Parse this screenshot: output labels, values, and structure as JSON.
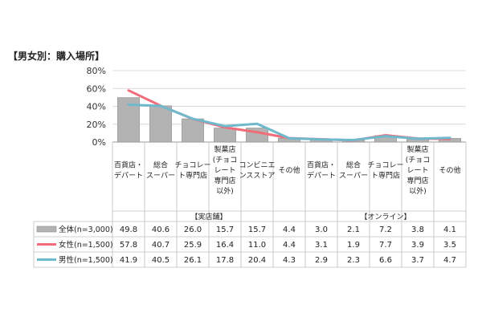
{
  "chart_data": {
    "type": "bar",
    "title": "【男女別：購入場所】",
    "ylim": [
      0,
      80
    ],
    "y_ticks": [
      "0%",
      "20%",
      "40%",
      "60%",
      "80%"
    ],
    "y_tick_values": [
      0,
      20,
      40,
      60,
      80
    ],
    "grid": true,
    "categories": [
      [
        "百貨店・",
        "デパート"
      ],
      [
        "総合",
        "スーパー"
      ],
      [
        "チョコレー",
        "ト専門店"
      ],
      [
        "製菓店",
        "(チョコ",
        "レート",
        "専門店",
        "以外)"
      ],
      [
        "コンビニエ",
        "ンスストア"
      ],
      [
        "その他"
      ],
      [
        "百貨店・",
        "デパート"
      ],
      [
        "総合",
        "スーパー"
      ],
      [
        "チョコレー",
        "ト専門店"
      ],
      [
        "製菓店",
        "(チョコ",
        "レート",
        "専門店",
        "以外)"
      ],
      [
        "その他"
      ]
    ],
    "groups": [
      {
        "label": "【実店舗】",
        "start": 0,
        "end": 5
      },
      {
        "label": "【オンライン】",
        "start": 6,
        "end": 10
      }
    ],
    "series": [
      {
        "name": "全体(n=3,000)",
        "kind": "bar",
        "color": "#b3b3b3",
        "values": [
          49.8,
          40.6,
          26.0,
          15.7,
          15.7,
          4.4,
          3.0,
          2.1,
          7.2,
          3.8,
          4.1
        ],
        "labels": [
          "49.8",
          "40.6",
          "26.0",
          "15.7",
          "15.7",
          "4.4",
          "3.0",
          "2.1",
          "7.2",
          "3.8",
          "4.1"
        ]
      },
      {
        "name": "女性(n=1,500)",
        "kind": "line",
        "color": "#f06c7a",
        "values": [
          57.8,
          40.7,
          25.9,
          16.4,
          11.0,
          4.4,
          3.1,
          1.9,
          7.7,
          3.9,
          3.5
        ],
        "labels": [
          "57.8",
          "40.7",
          "25.9",
          "16.4",
          "11.0",
          "4.4",
          "3.1",
          "1.9",
          "7.7",
          "3.9",
          "3.5"
        ]
      },
      {
        "name": "男性(n=1,500)",
        "kind": "line",
        "color": "#6fb9cc",
        "values": [
          41.9,
          40.5,
          26.1,
          17.8,
          20.4,
          4.3,
          2.9,
          2.3,
          6.6,
          3.7,
          4.7
        ],
        "labels": [
          "41.9",
          "40.5",
          "26.1",
          "17.8",
          "20.4",
          "4.3",
          "2.9",
          "2.3",
          "6.6",
          "3.7",
          "4.7"
        ]
      }
    ]
  }
}
